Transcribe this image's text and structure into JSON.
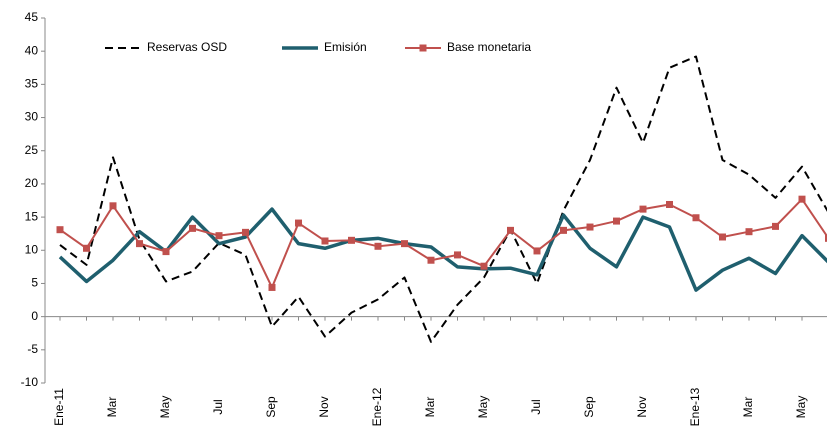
{
  "chart_data": {
    "type": "line",
    "categories": [
      "Ene-11",
      null,
      "Mar",
      null,
      "May",
      null,
      "Jul",
      null,
      "Sep",
      null,
      "Nov",
      null,
      "Ene-12",
      null,
      "Mar",
      null,
      "May",
      null,
      "Jul",
      null,
      "Sep",
      null,
      "Nov",
      null,
      "Ene-13",
      null,
      "Mar",
      null,
      "May",
      null
    ],
    "series": [
      {
        "name": "Reservas OSD",
        "color": "#000000",
        "dash": true,
        "marker": false,
        "values": [
          10.8,
          7.8,
          24,
          11.6,
          5.3,
          6.8,
          11.1,
          9.3,
          -1.5,
          3,
          -3,
          0.6,
          2.6,
          5.9,
          -3.8,
          1.8,
          5.9,
          13.1,
          5,
          16,
          23.6,
          34.5,
          26.2,
          37.5,
          39.2,
          23.6,
          21.4,
          17.9,
          22.6,
          15.7
        ]
      },
      {
        "name": "Emisión",
        "color": "#1f5f6e",
        "dash": false,
        "marker": false,
        "values": [
          9.0,
          5.3,
          8.5,
          12.8,
          9.8,
          15.0,
          11.0,
          12.0,
          16.2,
          11.0,
          10.3,
          11.5,
          11.8,
          11.0,
          10.5,
          7.5,
          7.2,
          7.3,
          6.3,
          15.3,
          10.3,
          7.5,
          15.0,
          13.5,
          4.0,
          7.0,
          8.8,
          6.5,
          12.2,
          8.2
        ]
      },
      {
        "name": "Base monetaria",
        "color": "#c0504d",
        "dash": false,
        "marker": true,
        "values": [
          13.1,
          10.3,
          16.7,
          11.0,
          9.8,
          13.3,
          12.2,
          12.7,
          4.4,
          14.1,
          11.4,
          11.5,
          10.6,
          11.0,
          8.5,
          9.3,
          7.6,
          13.0,
          9.9,
          13.0,
          13.5,
          14.4,
          16.2,
          16.9,
          14.9,
          12.0,
          12.8,
          13.6,
          17.7,
          11.8
        ]
      }
    ],
    "ylim": [
      -10,
      45
    ],
    "yticks": [
      -10,
      -5,
      0,
      5,
      10,
      15,
      20,
      25,
      30,
      35,
      40,
      45
    ],
    "grid": false
  }
}
